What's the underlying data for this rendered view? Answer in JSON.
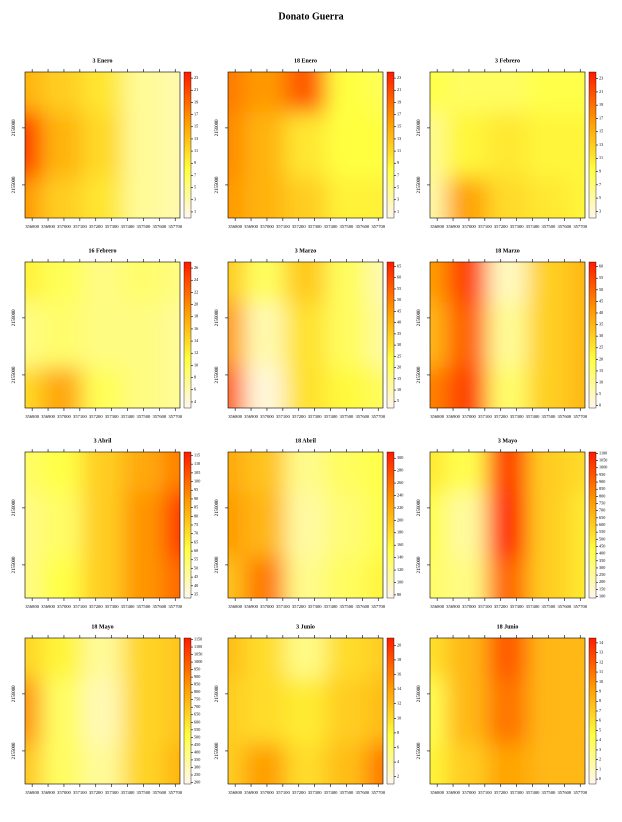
{
  "title": "Donato Guerra",
  "colorscale": [
    "#fff6f0",
    "#ffff40",
    "#ff9a00",
    "#ff1a00"
  ],
  "chart_data": [
    {
      "type": "heatmap",
      "title": "3 Enero",
      "xlim": [
        356755,
        357730
      ],
      "xticks": [
        356800,
        356900,
        357000,
        357100,
        357200,
        357300,
        357400,
        357500,
        357600,
        357700
      ],
      "ylim": [
        2154420,
        2156980
      ],
      "yticks": [
        2155000,
        2156000
      ],
      "zlim": [
        0,
        24
      ],
      "zticks": [
        1,
        3,
        5,
        7,
        9,
        11,
        13,
        15,
        17,
        19,
        21,
        23
      ],
      "values": [
        [
          14,
          12,
          10,
          4,
          3
        ],
        [
          22,
          14,
          11,
          4,
          3
        ],
        [
          16,
          12,
          10,
          4,
          3
        ]
      ]
    },
    {
      "type": "heatmap",
      "title": "18 Enero",
      "xlim": [
        356755,
        357730
      ],
      "xticks": [
        356800,
        356900,
        357000,
        357100,
        357200,
        357300,
        357400,
        357500,
        357600,
        357700
      ],
      "ylim": [
        2154420,
        2156980
      ],
      "yticks": [
        2155000,
        2156000
      ],
      "zlim": [
        0,
        24
      ],
      "zticks": [
        1,
        3,
        5,
        7,
        9,
        11,
        13,
        15,
        17,
        19,
        21,
        23
      ],
      "values": [
        [
          18,
          16,
          20,
          8,
          7
        ],
        [
          17,
          14,
          10,
          8,
          8
        ],
        [
          16,
          14,
          12,
          9,
          9
        ]
      ]
    },
    {
      "type": "heatmap",
      "title": "3 Febrero",
      "xlim": [
        356755,
        357730
      ],
      "xticks": [
        356800,
        356900,
        357000,
        357100,
        357200,
        357300,
        357400,
        357500,
        357600,
        357700
      ],
      "ylim": [
        2154420,
        2156980
      ],
      "yticks": [
        2155000,
        2156000
      ],
      "zlim": [
        2,
        24
      ],
      "zticks": [
        3,
        5,
        7,
        9,
        11,
        13,
        15,
        17,
        19,
        21,
        23
      ],
      "values": [
        [
          9,
          8,
          8,
          9,
          9
        ],
        [
          6,
          10,
          11,
          10,
          10
        ],
        [
          5,
          16,
          12,
          11,
          10
        ]
      ]
    },
    {
      "type": "heatmap",
      "title": "16 Febrero",
      "xlim": [
        356755,
        357730
      ],
      "xticks": [
        356800,
        356900,
        357000,
        357100,
        357200,
        357300,
        357400,
        357500,
        357600,
        357700
      ],
      "ylim": [
        2154420,
        2156980
      ],
      "yticks": [
        2155000,
        2156000
      ],
      "zlim": [
        3,
        27
      ],
      "zticks": [
        4,
        6,
        8,
        10,
        12,
        14,
        16,
        18,
        20,
        22,
        24,
        26
      ],
      "values": [
        [
          12,
          10,
          8,
          9,
          8
        ],
        [
          8,
          9,
          8,
          8,
          7
        ],
        [
          14,
          18,
          10,
          8,
          7
        ]
      ]
    },
    {
      "type": "heatmap",
      "title": "3 Marzo",
      "xlim": [
        356755,
        357730
      ],
      "xticks": [
        356800,
        356900,
        357000,
        357100,
        357200,
        357300,
        357400,
        357500,
        357600,
        357700
      ],
      "ylim": [
        2154420,
        2156980
      ],
      "yticks": [
        2155000,
        2156000
      ],
      "zlim": [
        2,
        67
      ],
      "zticks": [
        5,
        10,
        15,
        20,
        25,
        30,
        35,
        40,
        45,
        50,
        55,
        60,
        65
      ],
      "values": [
        [
          35,
          20,
          35,
          20,
          10
        ],
        [
          45,
          10,
          30,
          20,
          12
        ],
        [
          55,
          5,
          30,
          25,
          20
        ]
      ]
    },
    {
      "type": "heatmap",
      "title": "18 Marzo",
      "xlim": [
        356755,
        357730
      ],
      "xticks": [
        356800,
        356900,
        357000,
        357100,
        357200,
        357300,
        357400,
        357500,
        357600,
        357700
      ],
      "ylim": [
        2154420,
        2156980
      ],
      "yticks": [
        2155000,
        2156000
      ],
      "zlim": [
        -1,
        62
      ],
      "zticks": [
        0,
        5,
        10,
        15,
        20,
        25,
        30,
        35,
        40,
        45,
        50,
        55,
        60
      ],
      "values": [
        [
          40,
          55,
          5,
          30,
          35
        ],
        [
          35,
          50,
          10,
          30,
          35
        ],
        [
          45,
          55,
          15,
          30,
          35
        ]
      ]
    },
    {
      "type": "heatmap",
      "title": "3 Abril",
      "xlim": [
        356755,
        357730
      ],
      "xticks": [
        356800,
        356900,
        357000,
        357100,
        357200,
        357300,
        357400,
        357500,
        357600,
        357700
      ],
      "ylim": [
        2154420,
        2156980
      ],
      "yticks": [
        2155000,
        2156000
      ],
      "zlim": [
        33,
        117
      ],
      "zticks": [
        35,
        40,
        45,
        50,
        55,
        60,
        65,
        70,
        75,
        80,
        85,
        90,
        95,
        100,
        105,
        110,
        115
      ],
      "values": [
        [
          55,
          60,
          75,
          85,
          95
        ],
        [
          50,
          55,
          75,
          90,
          110
        ],
        [
          50,
          60,
          75,
          90,
          100
        ]
      ]
    },
    {
      "type": "heatmap",
      "title": "18 Abril",
      "xlim": [
        356755,
        357730
      ],
      "xticks": [
        356800,
        356900,
        357000,
        357100,
        357200,
        357300,
        357400,
        357500,
        357600,
        357700
      ],
      "ylim": [
        2154420,
        2156980
      ],
      "yticks": [
        2155000,
        2156000
      ],
      "zlim": [
        75,
        310
      ],
      "zticks": [
        80,
        100,
        120,
        140,
        160,
        180,
        200,
        220,
        240,
        260,
        280,
        300
      ],
      "values": [
        [
          220,
          200,
          120,
          140,
          150
        ],
        [
          230,
          210,
          110,
          130,
          150
        ],
        [
          200,
          250,
          120,
          140,
          160
        ]
      ]
    },
    {
      "type": "heatmap",
      "title": "3 Mayo",
      "xlim": [
        356755,
        357730
      ],
      "xticks": [
        356800,
        356900,
        357000,
        357100,
        357200,
        357300,
        357400,
        357500,
        357600,
        357700
      ],
      "ylim": [
        2154420,
        2156980
      ],
      "yticks": [
        2155000,
        2156000
      ],
      "zlim": [
        90,
        1110
      ],
      "zticks": [
        100,
        150,
        200,
        250,
        300,
        350,
        400,
        450,
        500,
        550,
        600,
        650,
        700,
        750,
        800,
        850,
        900,
        950,
        1000,
        1050,
        1100
      ],
      "values": [
        [
          500,
          400,
          1000,
          600,
          550
        ],
        [
          400,
          250,
          1050,
          600,
          500
        ],
        [
          350,
          300,
          900,
          600,
          500
        ]
      ]
    },
    {
      "type": "heatmap",
      "title": "18 Mayo",
      "xlim": [
        356755,
        357730
      ],
      "xticks": [
        356800,
        356900,
        357000,
        357100,
        357200,
        357300,
        357400,
        357500,
        357600,
        357700
      ],
      "ylim": [
        2154420,
        2156980
      ],
      "yticks": [
        2155000,
        2156000
      ],
      "zlim": [
        190,
        1160
      ],
      "zticks": [
        200,
        250,
        300,
        350,
        400,
        450,
        500,
        550,
        600,
        650,
        700,
        750,
        800,
        850,
        900,
        950,
        1000,
        1050,
        1100,
        1150
      ],
      "values": [
        [
          650,
          550,
          350,
          650,
          700
        ],
        [
          850,
          450,
          300,
          650,
          700
        ],
        [
          700,
          450,
          350,
          650,
          750
        ]
      ]
    },
    {
      "type": "heatmap",
      "title": "3 Junio",
      "xlim": [
        356755,
        357730
      ],
      "xticks": [
        356800,
        356900,
        357000,
        357100,
        357200,
        357300,
        357400,
        357500,
        357600,
        357700
      ],
      "ylim": [
        2154420,
        2156980
      ],
      "yticks": [
        2155000,
        2156000
      ],
      "zlim": [
        1,
        21
      ],
      "zticks": [
        2,
        4,
        6,
        8,
        10,
        12,
        14,
        16,
        18,
        20
      ],
      "values": [
        [
          12,
          10,
          5,
          10,
          11
        ],
        [
          11,
          10,
          9,
          11,
          12
        ],
        [
          11,
          14,
          10,
          12,
          16
        ]
      ]
    },
    {
      "type": "heatmap",
      "title": "18 Junio",
      "xlim": [
        356755,
        357730
      ],
      "xticks": [
        356800,
        356900,
        357000,
        357100,
        357200,
        357300,
        357400,
        357500,
        357600,
        357700
      ],
      "ylim": [
        2154420,
        2156980
      ],
      "yticks": [
        2155000,
        2156000
      ],
      "zlim": [
        -0.5,
        14.5
      ],
      "zticks": [
        0,
        1,
        2,
        3,
        4,
        5,
        6,
        7,
        8,
        9,
        10,
        11,
        12,
        13,
        14
      ],
      "values": [
        [
          6,
          8,
          12,
          8,
          8
        ],
        [
          4,
          8,
          11,
          8,
          8
        ],
        [
          5,
          7,
          9,
          8,
          8
        ]
      ]
    }
  ]
}
